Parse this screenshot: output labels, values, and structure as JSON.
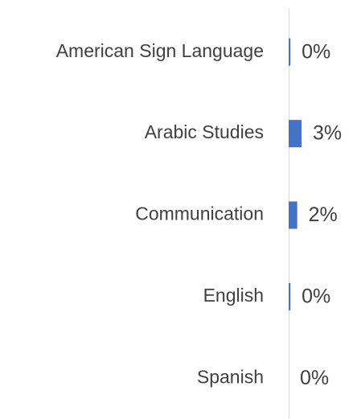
{
  "chart_data": {
    "type": "hbar",
    "categories": [
      "American Sign Language",
      "Arabic Studies",
      "Communication",
      "English",
      "Spanish"
    ],
    "values": [
      0.4,
      3,
      2,
      0.4,
      0
    ],
    "value_labels": [
      "0%",
      "3%",
      "2%",
      "0%",
      "0%"
    ],
    "color": "#4472c4",
    "xlim": [
      0,
      15
    ],
    "grid": false
  }
}
